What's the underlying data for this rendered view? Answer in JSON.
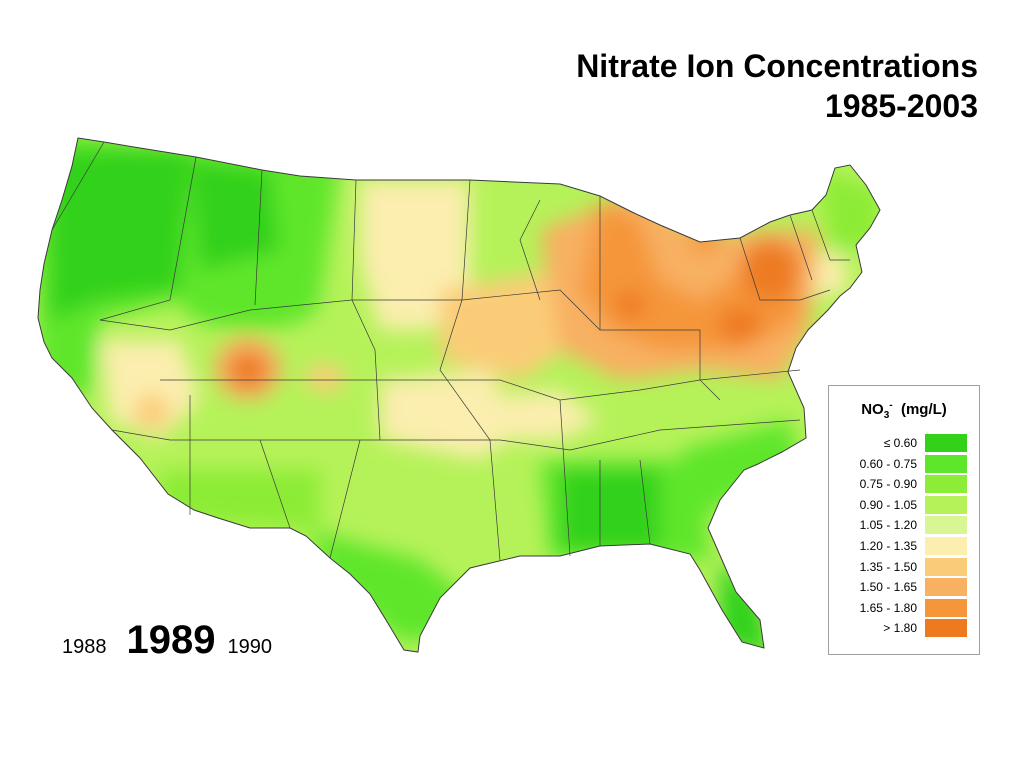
{
  "title": {
    "line1": "Nitrate Ion Concentrations",
    "line2": "1985-2003"
  },
  "years": {
    "prev": "1988",
    "current": "1989",
    "next": "1990"
  },
  "legend": {
    "title_main": "NO",
    "title_sub": "3",
    "title_sup": "-",
    "title_unit": "(mg/L)",
    "items": [
      {
        "label": "≤ 0.60",
        "color": "#33d11a"
      },
      {
        "label": "0.60 - 0.75",
        "color": "#5ee62a"
      },
      {
        "label": "0.75 - 0.90",
        "color": "#8cec36"
      },
      {
        "label": "0.90 - 1.05",
        "color": "#b5f259"
      },
      {
        "label": "1.05 - 1.20",
        "color": "#d8f794"
      },
      {
        "label": "1.20 - 1.35",
        "color": "#fbeeae"
      },
      {
        "label": "1.35 - 1.50",
        "color": "#fbcc78"
      },
      {
        "label": "1.50 - 1.65",
        "color": "#f8b062"
      },
      {
        "label": "1.65 - 1.80",
        "color": "#f5963a"
      },
      {
        "label": "> 1.80",
        "color": "#ee7a20"
      }
    ]
  },
  "map": {
    "base_color": "#b5f259",
    "border_color": "#3a3a3a"
  }
}
